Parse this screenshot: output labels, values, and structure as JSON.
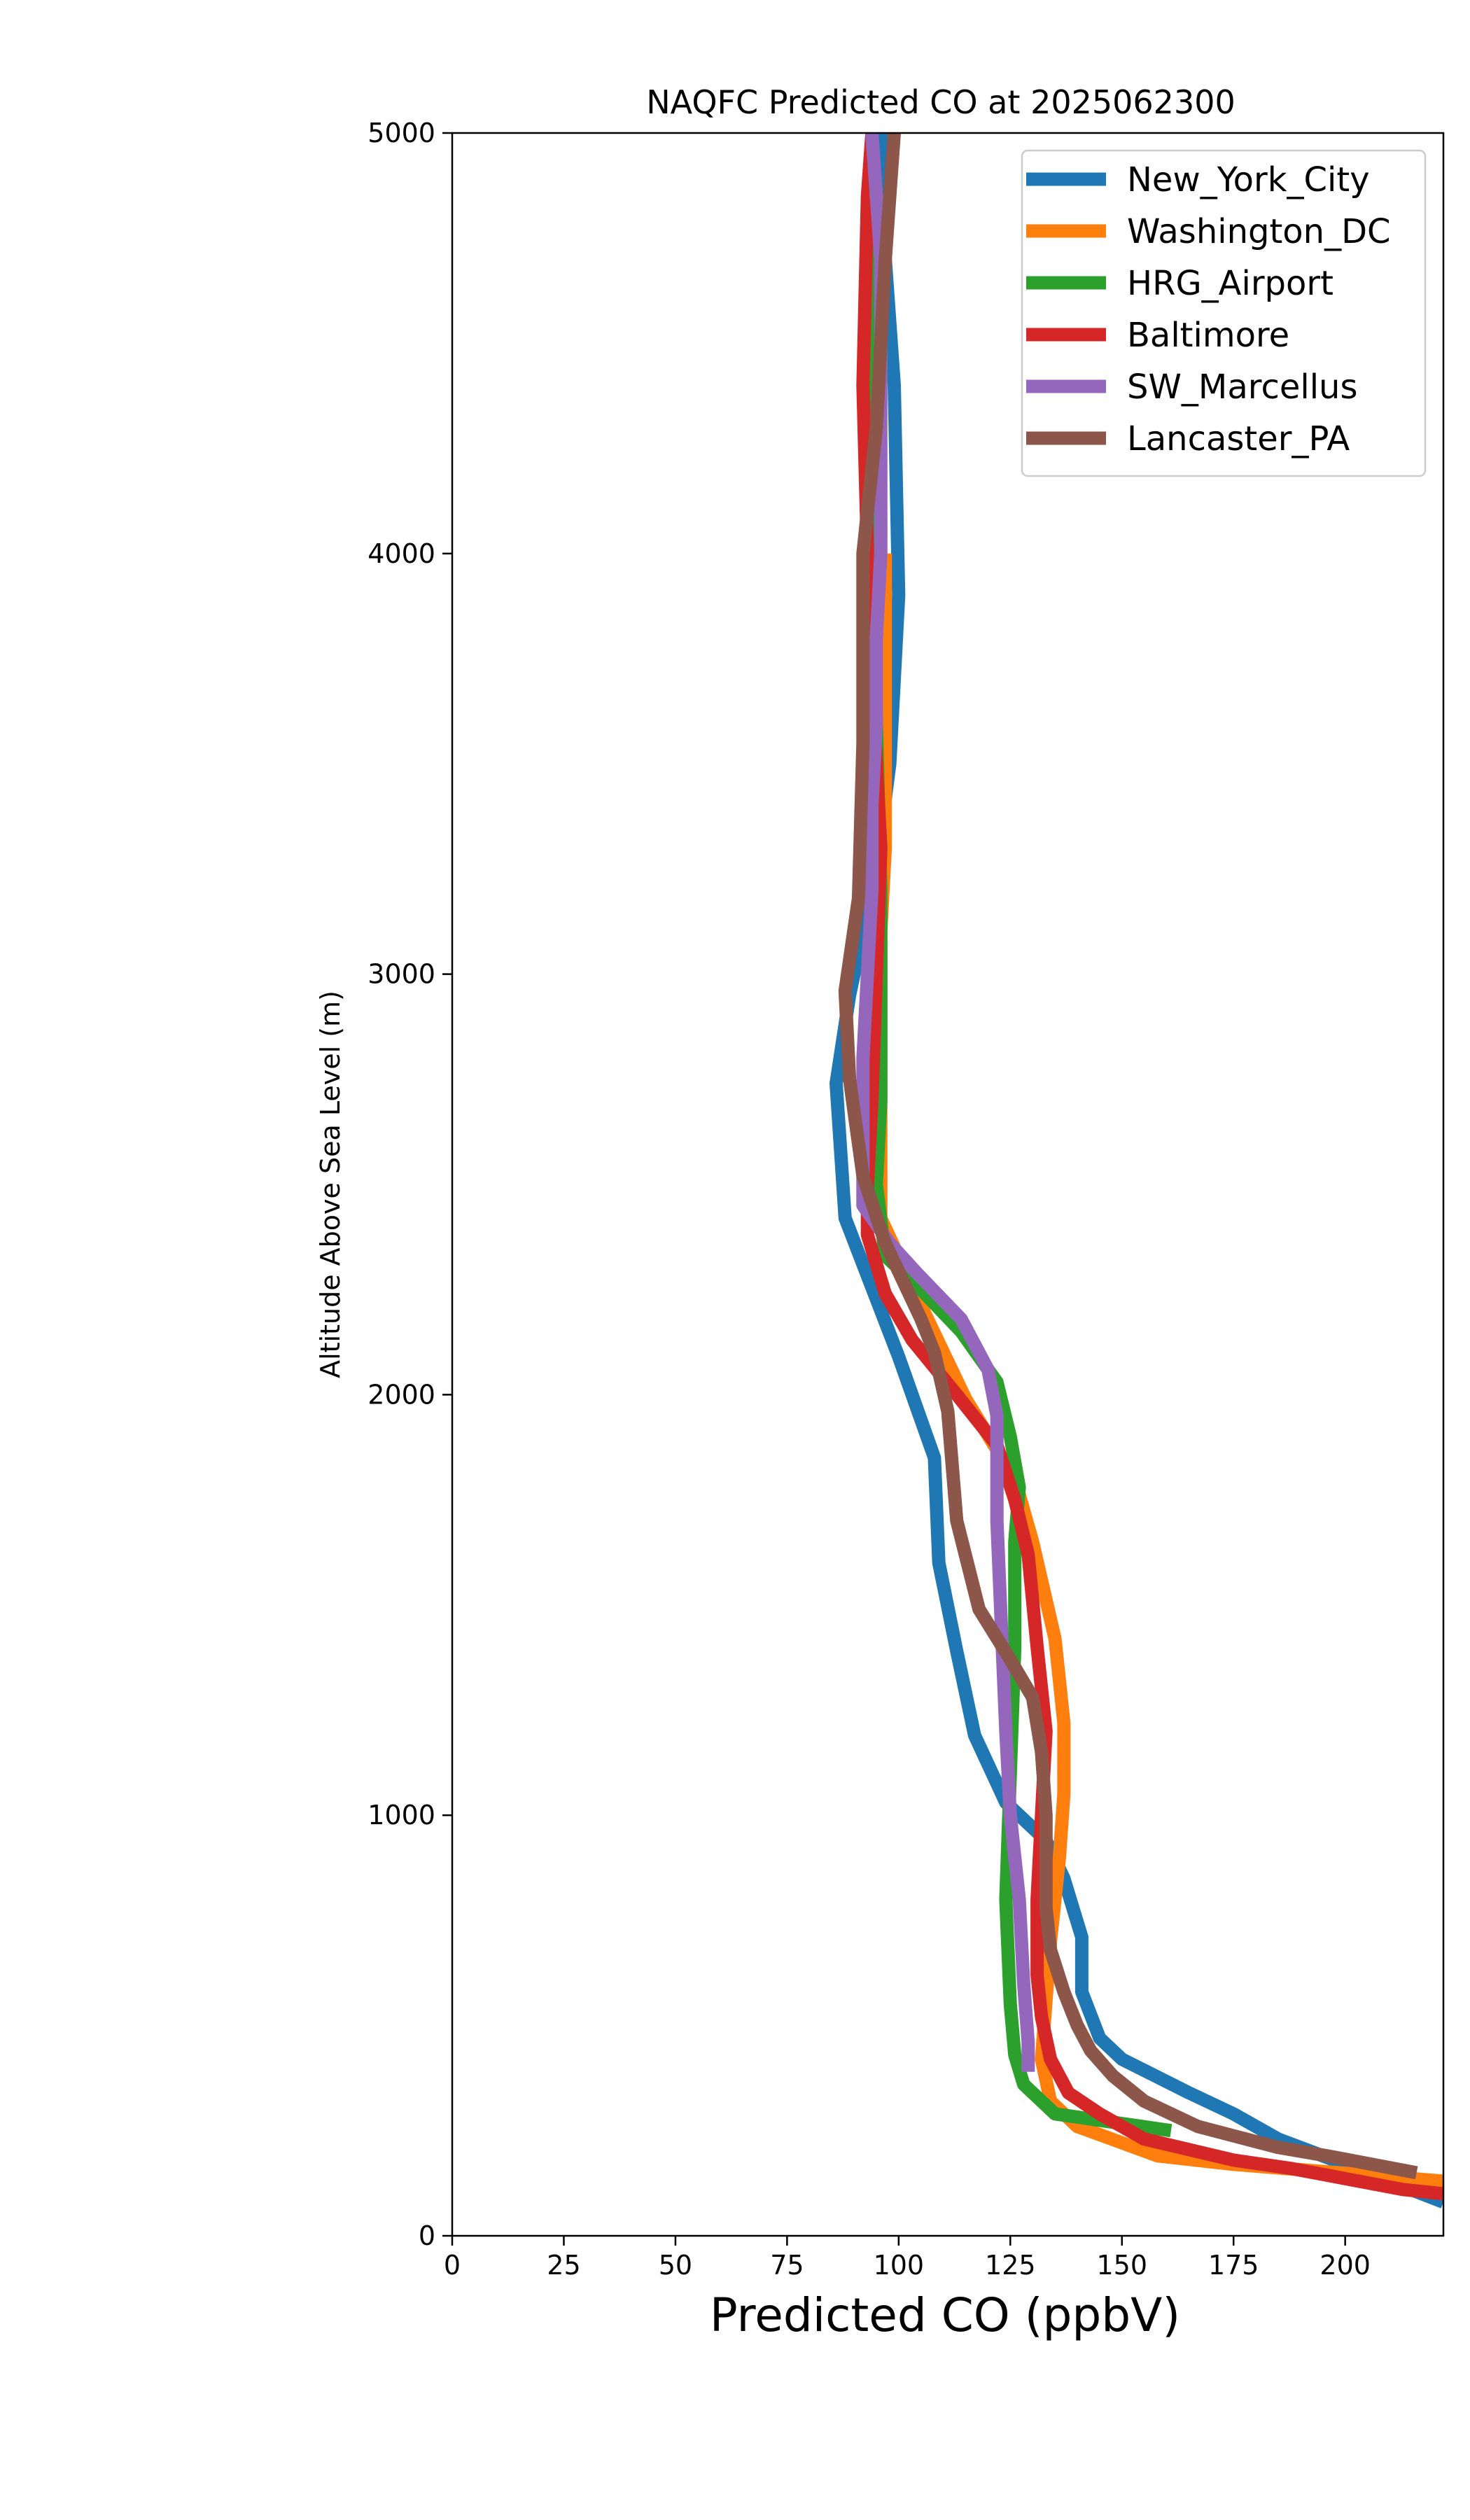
{
  "chart_data": {
    "type": "line",
    "title": "NAQFC Predicted CO at 2025062300",
    "xlabel": "Predicted CO (ppbV)",
    "ylabel": "Altitude Above Sea Level (m)",
    "xlim": [
      0,
      222
    ],
    "ylim": [
      0,
      5000
    ],
    "xticks": [
      "0",
      "25",
      "50",
      "75",
      "100",
      "125",
      "150",
      "175",
      "200"
    ],
    "yticks": [
      "0",
      "1000",
      "2000",
      "3000",
      "4000",
      "5000"
    ],
    "grid": false,
    "legend_position": "top-right",
    "series": [
      {
        "name": "New_York_City",
        "color": "#1f77b4",
        "points": [
          [
            222,
            80
          ],
          [
            205,
            150
          ],
          [
            185,
            230
          ],
          [
            175,
            290
          ],
          [
            165,
            340
          ],
          [
            150,
            420
          ],
          [
            145,
            470
          ],
          [
            141,
            580
          ],
          [
            141,
            710
          ],
          [
            137,
            850
          ],
          [
            133,
            940
          ],
          [
            124,
            1030
          ],
          [
            117,
            1190
          ],
          [
            113,
            1390
          ],
          [
            109,
            1600
          ],
          [
            108,
            1850
          ],
          [
            100,
            2090
          ],
          [
            88,
            2420
          ],
          [
            86,
            2740
          ],
          [
            89,
            2950
          ],
          [
            95,
            3250
          ],
          [
            98,
            3500
          ],
          [
            100,
            3900
          ],
          [
            99,
            4400
          ],
          [
            97,
            4700
          ],
          [
            96,
            5000
          ]
        ]
      },
      {
        "name": "Washington_DC",
        "color": "#ff7f0e",
        "points": [
          [
            222,
            130
          ],
          [
            175,
            170
          ],
          [
            158,
            190
          ],
          [
            140,
            260
          ],
          [
            134,
            320
          ],
          [
            132,
            420
          ],
          [
            133,
            560
          ],
          [
            134,
            700
          ],
          [
            136,
            900
          ],
          [
            137,
            1050
          ],
          [
            137,
            1220
          ],
          [
            135,
            1420
          ],
          [
            130,
            1650
          ],
          [
            126,
            1800
          ],
          [
            115,
            1990
          ],
          [
            106,
            2190
          ],
          [
            96,
            2420
          ],
          [
            96,
            2700
          ],
          [
            96,
            2900
          ],
          [
            96,
            3100
          ],
          [
            97,
            3300
          ],
          [
            97,
            4000
          ]
        ]
      },
      {
        "name": "HRG_Airport",
        "color": "#2ca02c",
        "points": [
          [
            161,
            250
          ],
          [
            135,
            290
          ],
          [
            128,
            360
          ],
          [
            126,
            430
          ],
          [
            125,
            550
          ],
          [
            124,
            800
          ],
          [
            125,
            1100
          ],
          [
            126,
            1400
          ],
          [
            126,
            1650
          ],
          [
            127,
            1780
          ],
          [
            125,
            1900
          ],
          [
            122,
            2030
          ],
          [
            114,
            2150
          ],
          [
            105,
            2250
          ],
          [
            97,
            2330
          ],
          [
            95,
            2500
          ],
          [
            96,
            2700
          ],
          [
            96,
            2900
          ],
          [
            96,
            3200
          ],
          [
            95,
            3600
          ],
          [
            94,
            4000
          ],
          [
            94,
            4500
          ],
          [
            93,
            4850
          ]
        ]
      },
      {
        "name": "Baltimore",
        "color": "#d62728",
        "points": [
          [
            222,
            100
          ],
          [
            213,
            110
          ],
          [
            198,
            140
          ],
          [
            188,
            160
          ],
          [
            175,
            180
          ],
          [
            155,
            230
          ],
          [
            145,
            290
          ],
          [
            138,
            340
          ],
          [
            134,
            420
          ],
          [
            132,
            520
          ],
          [
            131,
            620
          ],
          [
            131,
            800
          ],
          [
            132,
            1000
          ],
          [
            133,
            1200
          ],
          [
            131,
            1400
          ],
          [
            129,
            1620
          ],
          [
            126,
            1750
          ],
          [
            122,
            1880
          ],
          [
            113,
            2000
          ],
          [
            103,
            2130
          ],
          [
            97,
            2240
          ],
          [
            93,
            2380
          ],
          [
            93,
            2500
          ],
          [
            94,
            2700
          ],
          [
            95,
            3000
          ],
          [
            96,
            3300
          ],
          [
            94,
            3700
          ],
          [
            93,
            4000
          ],
          [
            92,
            4400
          ],
          [
            93,
            4850
          ],
          [
            94,
            5000
          ]
        ]
      },
      {
        "name": "SW_Marcellus",
        "color": "#9467bd",
        "points": [
          [
            129,
            390
          ],
          [
            129,
            460
          ],
          [
            128,
            600
          ],
          [
            127,
            800
          ],
          [
            125,
            1000
          ],
          [
            124,
            1200
          ],
          [
            123,
            1450
          ],
          [
            122,
            1700
          ],
          [
            122,
            1950
          ],
          [
            120,
            2060
          ],
          [
            114,
            2180
          ],
          [
            104,
            2290
          ],
          [
            98,
            2360
          ],
          [
            92,
            2450
          ],
          [
            92,
            2600
          ],
          [
            92,
            2800
          ],
          [
            93,
            3000
          ],
          [
            94,
            3200
          ],
          [
            94,
            3400
          ],
          [
            95,
            3600
          ],
          [
            95,
            3800
          ],
          [
            96,
            4000
          ],
          [
            96,
            4200
          ],
          [
            96,
            4400
          ],
          [
            96,
            4700
          ],
          [
            94,
            5000
          ]
        ]
      },
      {
        "name": "Lancaster_PA",
        "color": "#8c564b",
        "points": [
          [
            216,
            150
          ],
          [
            196,
            190
          ],
          [
            185,
            210
          ],
          [
            167,
            260
          ],
          [
            155,
            320
          ],
          [
            148,
            380
          ],
          [
            143,
            440
          ],
          [
            140,
            500
          ],
          [
            137,
            580
          ],
          [
            134,
            680
          ],
          [
            133,
            780
          ],
          [
            133,
            900
          ],
          [
            133,
            1000
          ],
          [
            132,
            1150
          ],
          [
            130,
            1280
          ],
          [
            125,
            1370
          ],
          [
            118,
            1490
          ],
          [
            113,
            1700
          ],
          [
            111,
            1960
          ],
          [
            108,
            2100
          ],
          [
            105,
            2180
          ],
          [
            97,
            2360
          ],
          [
            92,
            2520
          ],
          [
            89,
            2750
          ],
          [
            88,
            2960
          ],
          [
            91,
            3180
          ],
          [
            92,
            3550
          ],
          [
            92,
            4000
          ],
          [
            95,
            4300
          ],
          [
            97,
            4700
          ],
          [
            99,
            5000
          ]
        ]
      }
    ]
  }
}
